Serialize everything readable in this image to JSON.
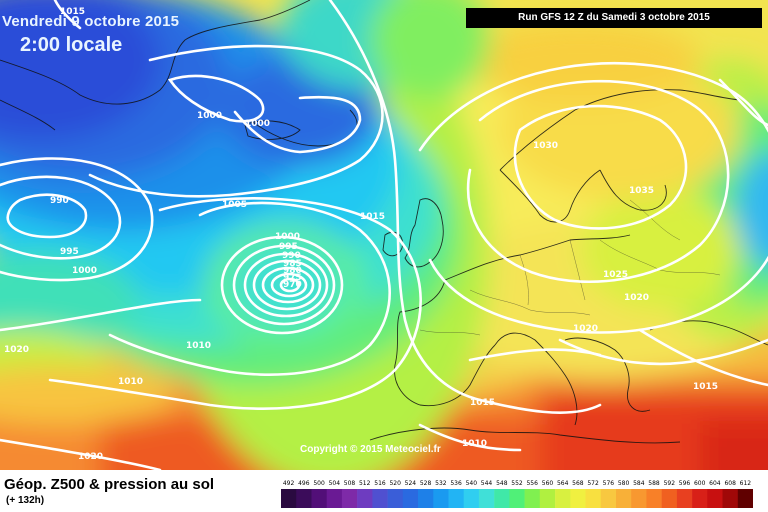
{
  "header": {
    "valid_date": "Vendredi 9 octobre 2015",
    "local_time": "2:00 locale",
    "run_info": "Run GFS 12 Z du Samedi 3 octobre 2015"
  },
  "copyright": "Copyright © 2015 Meteociel.fr",
  "legend": {
    "title": "Géop. Z500 & pression au sol",
    "forecast_range": "(+ 132h)",
    "scale_values": [
      "492",
      "496",
      "500",
      "504",
      "508",
      "512",
      "516",
      "520",
      "524",
      "528",
      "532",
      "536",
      "540",
      "544",
      "548",
      "552",
      "556",
      "560",
      "564",
      "568",
      "572",
      "576",
      "580",
      "584",
      "588",
      "592",
      "596",
      "600",
      "604",
      "608",
      "612"
    ],
    "scale_colors": [
      "#2a0a40",
      "#3b0c5a",
      "#520f78",
      "#6a1a94",
      "#7e2aa8",
      "#6e3cc0",
      "#5050d0",
      "#3a5ed8",
      "#2a6ae0",
      "#1e80e8",
      "#1a9af0",
      "#22b4f4",
      "#30cef0",
      "#40e0d8",
      "#40e8a8",
      "#50f078",
      "#80f050",
      "#b0f040",
      "#d8f040",
      "#f0f040",
      "#f8e040",
      "#f8c840",
      "#f8b038",
      "#f89830",
      "#f88028",
      "#f06020",
      "#e84020",
      "#d82018",
      "#c81010",
      "#a00808",
      "#600000"
    ]
  },
  "isobars": {
    "labels": [
      {
        "text": "1015"
      },
      {
        "text": "1000"
      },
      {
        "text": "1000"
      },
      {
        "text": "990"
      },
      {
        "text": "995"
      },
      {
        "text": "1000"
      },
      {
        "text": "1005"
      },
      {
        "text": "1000"
      },
      {
        "text": "995"
      },
      {
        "text": "990"
      },
      {
        "text": "985"
      },
      {
        "text": "980"
      },
      {
        "text": "975"
      },
      {
        "text": "970"
      },
      {
        "text": "1015"
      },
      {
        "text": "1030"
      },
      {
        "text": "1035"
      },
      {
        "text": "1025"
      },
      {
        "text": "1020"
      },
      {
        "text": "1020"
      },
      {
        "text": "1020"
      },
      {
        "text": "1010"
      },
      {
        "text": "1010"
      },
      {
        "text": "1015"
      },
      {
        "text": "1010"
      },
      {
        "text": "1015"
      },
      {
        "text": "1020"
      }
    ]
  }
}
